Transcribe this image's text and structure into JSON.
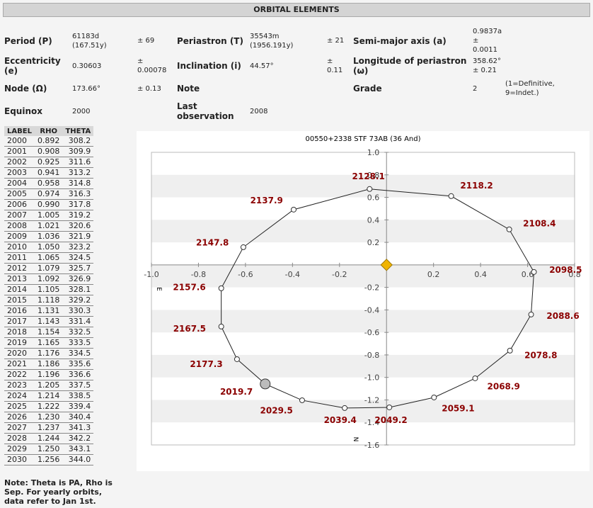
{
  "header": {
    "title": "ORBITAL ELEMENTS"
  },
  "elements": {
    "rows": [
      [
        {
          "label": "Period (P)",
          "value": "61183d (167.51y)",
          "error": "± 69"
        },
        {
          "label": "Periastron (T)",
          "value": "35543m (1956.191y)",
          "error": "± 21"
        },
        {
          "label": "Semi-major axis (a)",
          "value": "0.9837a ± 0.0011"
        }
      ],
      [
        {
          "label": "Eccentricity (e)",
          "value": "0.30603",
          "error": "± 0.00078"
        },
        {
          "label": "Inclination (i)",
          "value": "44.57°",
          "error": "± 0.11"
        },
        {
          "label": "Longitude of periastron (ω)",
          "value": "358.62° ± 0.21"
        }
      ],
      [
        {
          "label": "Node (Ω)",
          "value": "173.66°",
          "error": "± 0.13"
        },
        {
          "label": "Note"
        },
        {
          "label": "Grade",
          "value": "2",
          "error": "(1=Definitive, 9=Indet.)"
        }
      ],
      [
        {
          "label": "Equinox",
          "value": "2000"
        },
        {
          "label": "Last observation",
          "value": "2008"
        }
      ]
    ]
  },
  "table": {
    "headers": [
      "LABEL",
      "RHO",
      "THETA"
    ],
    "rows": [
      [
        "2000",
        "0.892",
        "308.2"
      ],
      [
        "2001",
        "0.908",
        "309.9"
      ],
      [
        "2002",
        "0.925",
        "311.6"
      ],
      [
        "2003",
        "0.941",
        "313.2"
      ],
      [
        "2004",
        "0.958",
        "314.8"
      ],
      [
        "2005",
        "0.974",
        "316.3"
      ],
      [
        "2006",
        "0.990",
        "317.8"
      ],
      [
        "2007",
        "1.005",
        "319.2"
      ],
      [
        "2008",
        "1.021",
        "320.6"
      ],
      [
        "2009",
        "1.036",
        "321.9"
      ],
      [
        "2010",
        "1.050",
        "323.2"
      ],
      [
        "2011",
        "1.065",
        "324.5"
      ],
      [
        "2012",
        "1.079",
        "325.7"
      ],
      [
        "2013",
        "1.092",
        "326.9"
      ],
      [
        "2014",
        "1.105",
        "328.1"
      ],
      [
        "2015",
        "1.118",
        "329.2"
      ],
      [
        "2016",
        "1.131",
        "330.3"
      ],
      [
        "2017",
        "1.143",
        "331.4"
      ],
      [
        "2018",
        "1.154",
        "332.5"
      ],
      [
        "2019",
        "1.165",
        "333.5"
      ],
      [
        "2020",
        "1.176",
        "334.5"
      ],
      [
        "2021",
        "1.186",
        "335.6"
      ],
      [
        "2022",
        "1.196",
        "336.6"
      ],
      [
        "2023",
        "1.205",
        "337.5"
      ],
      [
        "2024",
        "1.214",
        "338.5"
      ],
      [
        "2025",
        "1.222",
        "339.4"
      ],
      [
        "2026",
        "1.230",
        "340.4"
      ],
      [
        "2027",
        "1.237",
        "341.3"
      ],
      [
        "2028",
        "1.244",
        "342.2"
      ],
      [
        "2029",
        "1.250",
        "343.1"
      ],
      [
        "2030",
        "1.256",
        "344.0"
      ]
    ]
  },
  "note": "Note: Theta is PA, Rho is Sep. For yearly orbits, data refer to Jan 1st.",
  "chart_data": {
    "type": "orbit",
    "title": "00550+2338 STF  73AB (36 And)",
    "x_label": "E",
    "y_label": "N",
    "xlim": [
      -1.0,
      0.8
    ],
    "ylim": [
      -1.6,
      1.0
    ],
    "xticks": [
      {
        "value": -1.0,
        "label": "-1.0"
      },
      -0.8,
      -0.6,
      -0.4,
      -0.2,
      0.2,
      0.4,
      0.6,
      0.8
    ],
    "yticks": [
      {
        "value": 1.0,
        "label": "1.0"
      },
      0.8,
      0.6,
      0.4,
      0.2,
      -0.2,
      -0.4,
      -0.6,
      -0.8,
      {
        "value": -1.0,
        "label": "-1.0"
      },
      -1.2,
      -1.4,
      -1.6
    ],
    "bands": true,
    "color": "#222222",
    "label_color": "#8b0000",
    "points": [
      {
        "label": "2128.1",
        "x": -0.072,
        "y": 0.674
      },
      {
        "label": "2118.2",
        "x": 0.275,
        "y": 0.611
      },
      {
        "label": "2108.4",
        "x": 0.522,
        "y": 0.315
      },
      {
        "label": "2098.5",
        "x": 0.627,
        "y": -0.063
      },
      {
        "label": "2088.6",
        "x": 0.615,
        "y": -0.441
      },
      {
        "label": "2078.8",
        "x": 0.525,
        "y": -0.762
      },
      {
        "label": "2068.9",
        "x": 0.377,
        "y": -1.008
      },
      {
        "label": "2059.1",
        "x": 0.202,
        "y": -1.178
      },
      {
        "label": "2049.2",
        "x": 0.012,
        "y": -1.266
      },
      {
        "label": "2039.4",
        "x": -0.178,
        "y": -1.272
      },
      {
        "label": "2029.5",
        "x": -0.359,
        "y": -1.203
      },
      {
        "label": "2019.7",
        "x": -0.516,
        "y": -1.058,
        "current": true
      },
      {
        "label": "2177.3",
        "x": -0.636,
        "y": -0.838
      },
      {
        "label": "2167.5",
        "x": -0.703,
        "y": -0.548
      },
      {
        "label": "2157.6",
        "x": -0.703,
        "y": -0.208
      },
      {
        "label": "2147.8",
        "x": -0.609,
        "y": 0.157
      },
      {
        "label": "2137.9",
        "x": -0.395,
        "y": 0.491
      }
    ]
  }
}
